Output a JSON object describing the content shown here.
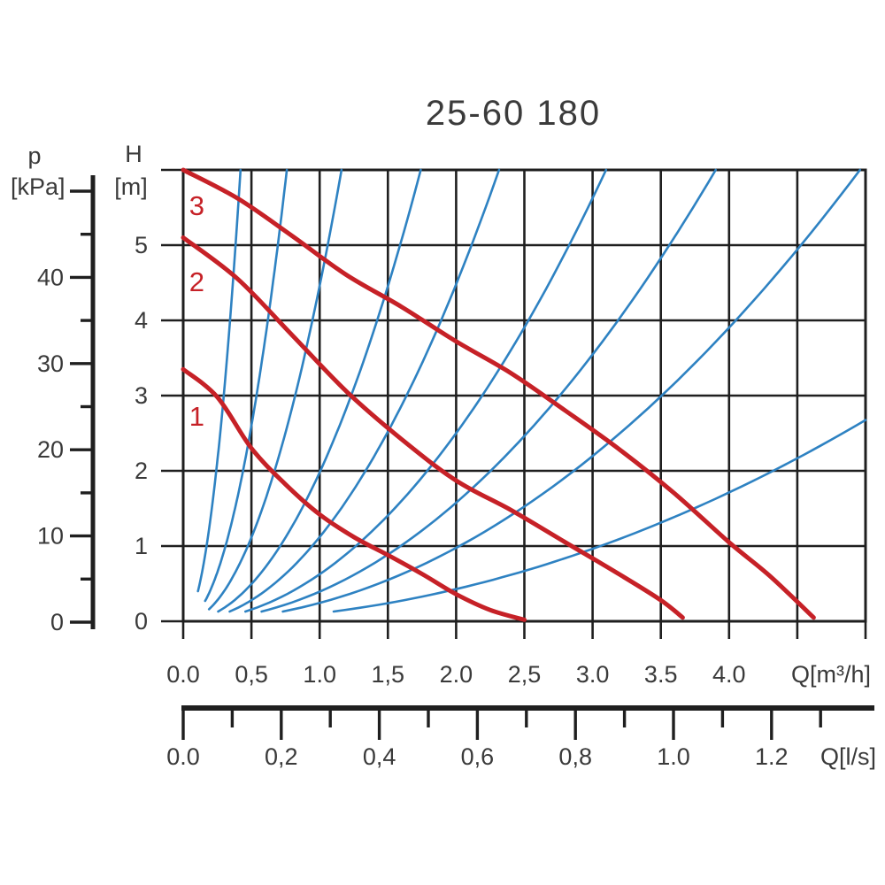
{
  "title": "25-60 180",
  "colors": {
    "pump_curve_red": "#c62127",
    "system_curve_blue": "#2e82c2",
    "grid_black": "#1f1f1f",
    "text_gray": "#3a3a3a"
  },
  "pressure_axis": {
    "symbol": "p",
    "unit": "[kPa]",
    "tick_labels": [
      "0",
      "10",
      "20",
      "30",
      "40"
    ],
    "minor_step_kpa": 5,
    "max_kpa": 50
  },
  "head_axis": {
    "symbol": "H",
    "unit": "[m]",
    "tick_labels": [
      "0",
      "1",
      "2",
      "3",
      "4",
      "5"
    ],
    "max_m": 6
  },
  "flow_axis_m3h": {
    "unit_label": "Q[m³/h]",
    "tick_labels": [
      "0.0",
      "0,5",
      "1.0",
      "1,5",
      "2.0",
      "2,5",
      "3.0",
      "3.5",
      "4.0"
    ],
    "tick_step": 0.5
  },
  "flow_axis_ls": {
    "unit_label": "Q[l/s]",
    "tick_labels": [
      "0.0",
      "0,2",
      "0,4",
      "0,6",
      "0,8",
      "1.0",
      "1.2"
    ],
    "labeled_step": 0.2,
    "minor_step": 0.1,
    "minor_max": 1.3
  },
  "chart_data": {
    "type": "line",
    "title": "25-60 180",
    "xlabel": "Q[m³/h]",
    "ylabel": "H [m]",
    "xlim": [
      0,
      5.0
    ],
    "ylim": [
      0,
      6
    ],
    "grid": "on",
    "x_grid_step": 0.5,
    "y_grid_step": 1,
    "pump_curves": [
      {
        "name": "1",
        "label_at": [
          0.1,
          2.73
        ],
        "points": [
          [
            0,
            3.35
          ],
          [
            0.25,
            2.98
          ],
          [
            0.5,
            2.3
          ],
          [
            0.75,
            1.82
          ],
          [
            1.0,
            1.42
          ],
          [
            1.25,
            1.12
          ],
          [
            1.5,
            0.88
          ],
          [
            1.75,
            0.63
          ],
          [
            2.0,
            0.36
          ],
          [
            2.25,
            0.15
          ],
          [
            2.5,
            0.02
          ]
        ]
      },
      {
        "name": "2",
        "label_at": [
          0.1,
          4.52
        ],
        "points": [
          [
            0,
            5.1
          ],
          [
            0.4,
            4.55
          ],
          [
            0.8,
            3.8
          ],
          [
            1.2,
            3.05
          ],
          [
            1.6,
            2.42
          ],
          [
            2.0,
            1.87
          ],
          [
            2.4,
            1.48
          ],
          [
            2.8,
            1.05
          ],
          [
            3.2,
            0.62
          ],
          [
            3.5,
            0.28
          ],
          [
            3.66,
            0.05
          ]
        ]
      },
      {
        "name": "3",
        "label_at": [
          0.1,
          5.53
        ],
        "points": [
          [
            0,
            6.0
          ],
          [
            0.4,
            5.62
          ],
          [
            0.8,
            5.12
          ],
          [
            1.2,
            4.6
          ],
          [
            1.6,
            4.18
          ],
          [
            2.0,
            3.72
          ],
          [
            2.4,
            3.3
          ],
          [
            2.8,
            2.8
          ],
          [
            3.2,
            2.28
          ],
          [
            3.6,
            1.7
          ],
          [
            4.0,
            1.05
          ],
          [
            4.3,
            0.6
          ],
          [
            4.62,
            0.05
          ]
        ]
      }
    ],
    "system_curves": {
      "formula": "H = k × Q²",
      "curves": [
        {
          "k": 34.0,
          "h_start": 0.4
        },
        {
          "k": 10.4,
          "h_start": 0.27
        },
        {
          "k": 4.46,
          "h_start": 0.16
        },
        {
          "k": 1.98,
          "h_start": 0.13
        },
        {
          "k": 1.12,
          "h_start": 0.13
        },
        {
          "k": 0.625,
          "h_start": 0.13
        },
        {
          "k": 0.394,
          "h_start": 0.13
        },
        {
          "k": 0.244,
          "h_start": 0.13
        },
        {
          "k": 0.107,
          "h_start": 0.13
        }
      ]
    }
  }
}
